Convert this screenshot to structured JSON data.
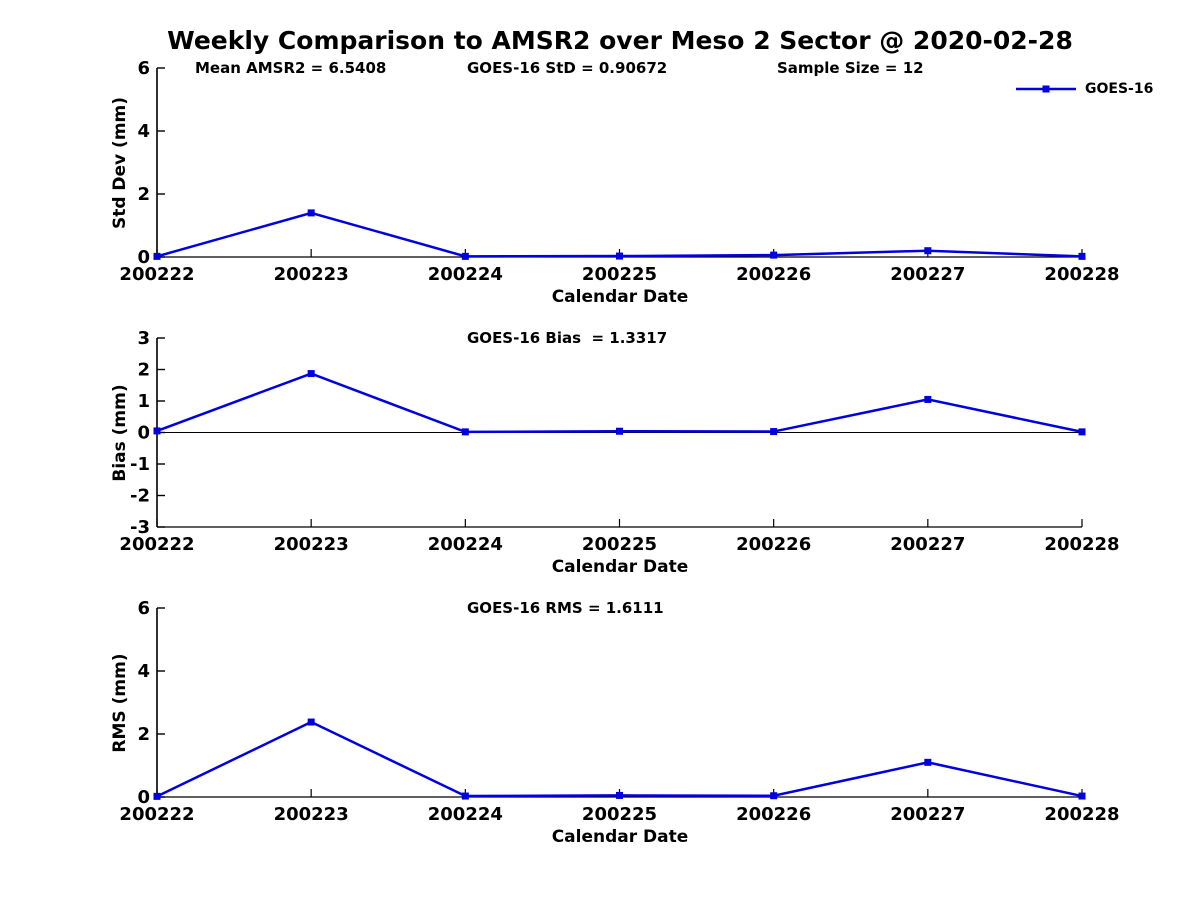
{
  "title": "Weekly Comparison to AMSR2 over Meso 2 Sector @ 2020-02-28",
  "legend": {
    "label": "GOES-16"
  },
  "colors": {
    "series": "#0000e0",
    "axis": "#000000"
  },
  "chart_data": [
    {
      "type": "line",
      "id": "std-dev",
      "annotations": [
        "Mean AMSR2 = 6.5408",
        "GOES-16 StD = 0.90672",
        "Sample Size = 12"
      ],
      "ylabel": "Std Dev (mm)",
      "xlabel": "Calendar Date",
      "ylim": [
        0,
        6
      ],
      "yticks": [
        0,
        2,
        4,
        6
      ],
      "grid": false,
      "legend_position": "top-right",
      "categories": [
        "200222",
        "200223",
        "200224",
        "200225",
        "200226",
        "200227",
        "200228"
      ],
      "series": [
        {
          "name": "GOES-16",
          "values": [
            0.02,
            1.4,
            0.02,
            0.03,
            0.06,
            0.2,
            0.02
          ]
        }
      ]
    },
    {
      "type": "line",
      "id": "bias",
      "annotations": [
        "GOES-16 Bias  = 1.3317"
      ],
      "ylabel": "Bias (mm)",
      "xlabel": "Calendar Date",
      "ylim": [
        -3,
        3
      ],
      "yticks": [
        -3,
        -2,
        -1,
        0,
        1,
        2,
        3
      ],
      "grid": false,
      "categories": [
        "200222",
        "200223",
        "200224",
        "200225",
        "200226",
        "200227",
        "200228"
      ],
      "series": [
        {
          "name": "GOES-16",
          "values": [
            0.05,
            1.87,
            0.02,
            0.04,
            0.03,
            1.05,
            0.02
          ]
        }
      ]
    },
    {
      "type": "line",
      "id": "rms",
      "annotations": [
        "GOES-16 RMS = 1.6111"
      ],
      "ylabel": "RMS (mm)",
      "xlabel": "Calendar Date",
      "ylim": [
        0,
        6
      ],
      "yticks": [
        0,
        2,
        4,
        6
      ],
      "grid": false,
      "categories": [
        "200222",
        "200223",
        "200224",
        "200225",
        "200226",
        "200227",
        "200228"
      ],
      "series": [
        {
          "name": "GOES-16",
          "values": [
            0.02,
            2.38,
            0.03,
            0.05,
            0.04,
            1.1,
            0.03
          ]
        }
      ]
    }
  ]
}
